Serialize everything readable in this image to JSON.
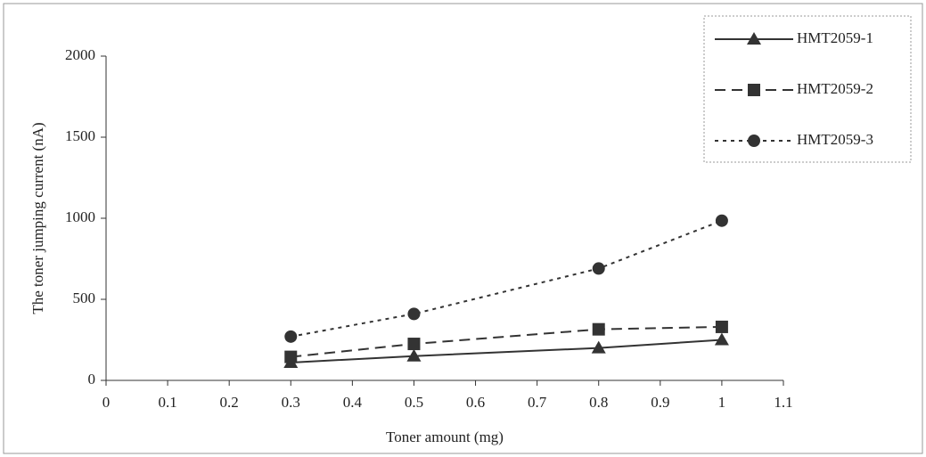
{
  "chart_data": {
    "type": "line",
    "x_label": "Toner amount (mg)",
    "y_label": "The toner jumping current (nA)",
    "x": [
      0.3,
      0.5,
      0.8,
      1
    ],
    "series": [
      {
        "name": "HMT2059-1",
        "color": "#333333",
        "style": "solid",
        "marker": "triangle",
        "values": [
          110,
          150,
          200,
          250
        ]
      },
      {
        "name": "HMT2059-2",
        "color": "#333333",
        "style": "dashed",
        "marker": "square",
        "values": [
          145,
          225,
          315,
          330
        ]
      },
      {
        "name": "HMT2059-3",
        "color": "#333333",
        "style": "dotted",
        "marker": "circle",
        "values": [
          270,
          410,
          690,
          985
        ]
      }
    ],
    "xlim": [
      0,
      1.1
    ],
    "xticks": [
      0,
      0.1,
      0.2,
      0.3,
      0.4,
      0.5,
      0.6,
      0.7,
      0.8,
      0.9,
      1,
      1.1
    ],
    "ylim": [
      0,
      2000
    ],
    "yticks": [
      0,
      500,
      1000,
      1500,
      2000
    ],
    "legend": "top-right"
  }
}
